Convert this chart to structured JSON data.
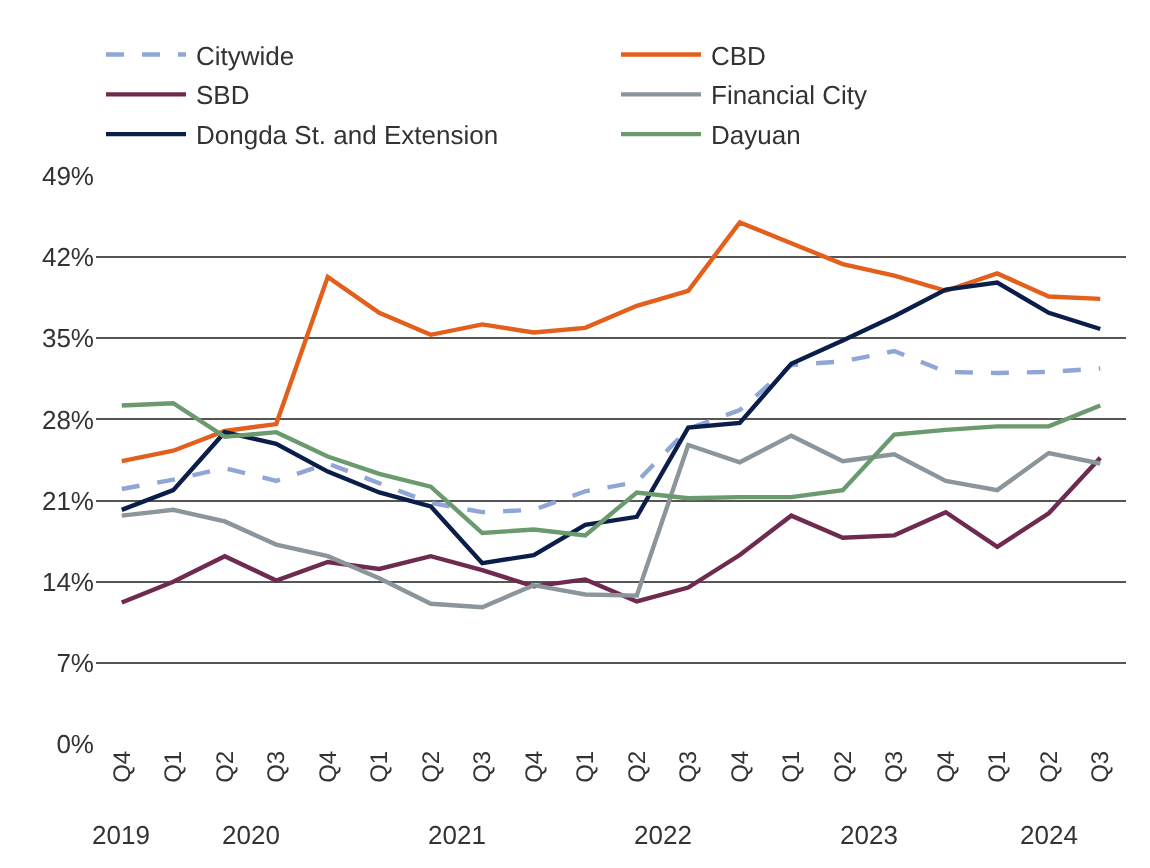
{
  "chart_data": {
    "type": "line",
    "categories": [
      "Q4",
      "Q1",
      "Q2",
      "Q3",
      "Q4",
      "Q1",
      "Q2",
      "Q3",
      "Q4",
      "Q1",
      "Q2",
      "Q3",
      "Q4",
      "Q1",
      "Q2",
      "Q3",
      "Q4",
      "Q1",
      "Q2",
      "Q3"
    ],
    "annotations": [
      "2019",
      "2020",
      "2021",
      "2022",
      "2023",
      "2024"
    ],
    "ylim": [
      0,
      49
    ],
    "yticks": [
      {
        "value": 0,
        "label": "0%"
      },
      {
        "value": 7,
        "label": "7%"
      },
      {
        "value": 14,
        "label": "14%"
      },
      {
        "value": 21,
        "label": "21%"
      },
      {
        "value": 28,
        "label": "28%"
      },
      {
        "value": 35,
        "label": "35%"
      },
      {
        "value": 42,
        "label": "42%"
      },
      {
        "value": 49,
        "label": "49%"
      }
    ],
    "grid": "y",
    "legend": "top",
    "marker": "none",
    "series": [
      {
        "name": "Citywide",
        "color": "#8fa6d6",
        "line_style": "dashed",
        "values": [
          22.0,
          22.8,
          23.8,
          22.7,
          24.2,
          22.5,
          20.8,
          20.0,
          20.2,
          21.8,
          22.6,
          27.2,
          28.8,
          32.7,
          33.0,
          33.9,
          32.1,
          32.0,
          32.1,
          32.4
        ]
      },
      {
        "name": "CBD",
        "color": "#e35f1c",
        "line_style": "solid",
        "values": [
          24.4,
          25.3,
          27.0,
          27.6,
          40.3,
          37.2,
          35.3,
          36.2,
          35.5,
          35.9,
          37.8,
          39.1,
          45.0,
          43.2,
          41.4,
          40.4,
          39.1,
          40.6,
          38.6,
          38.4
        ]
      },
      {
        "name": "SBD",
        "color": "#6e2b4f",
        "line_style": "solid",
        "values": [
          12.2,
          14.0,
          16.2,
          14.1,
          15.7,
          15.1,
          16.2,
          15.0,
          13.6,
          14.2,
          12.3,
          13.5,
          16.3,
          19.7,
          17.8,
          18.0,
          20.0,
          17.0,
          19.9,
          24.7
        ]
      },
      {
        "name": "Financial City",
        "color": "#8a959c",
        "line_style": "solid",
        "values": [
          19.7,
          20.2,
          19.2,
          17.2,
          16.2,
          14.3,
          12.1,
          11.8,
          13.7,
          12.9,
          12.8,
          25.8,
          24.3,
          26.6,
          24.4,
          25.0,
          22.7,
          21.9,
          25.1,
          24.2
        ]
      },
      {
        "name": "Dongda St. and Extension",
        "color": "#0b1e4a",
        "line_style": "solid",
        "values": [
          20.2,
          21.9,
          26.9,
          25.9,
          23.5,
          21.7,
          20.5,
          15.6,
          16.3,
          18.9,
          19.6,
          27.3,
          27.7,
          32.8,
          34.8,
          36.9,
          39.2,
          39.8,
          37.2,
          35.8
        ]
      },
      {
        "name": "Dayuan",
        "color": "#6b9a6e",
        "line_style": "solid",
        "values": [
          29.2,
          29.4,
          26.5,
          26.9,
          24.8,
          23.3,
          22.2,
          18.2,
          18.5,
          18.0,
          21.7,
          21.2,
          21.3,
          21.3,
          21.9,
          26.7,
          27.1,
          27.4,
          27.4,
          29.2
        ]
      }
    ]
  }
}
